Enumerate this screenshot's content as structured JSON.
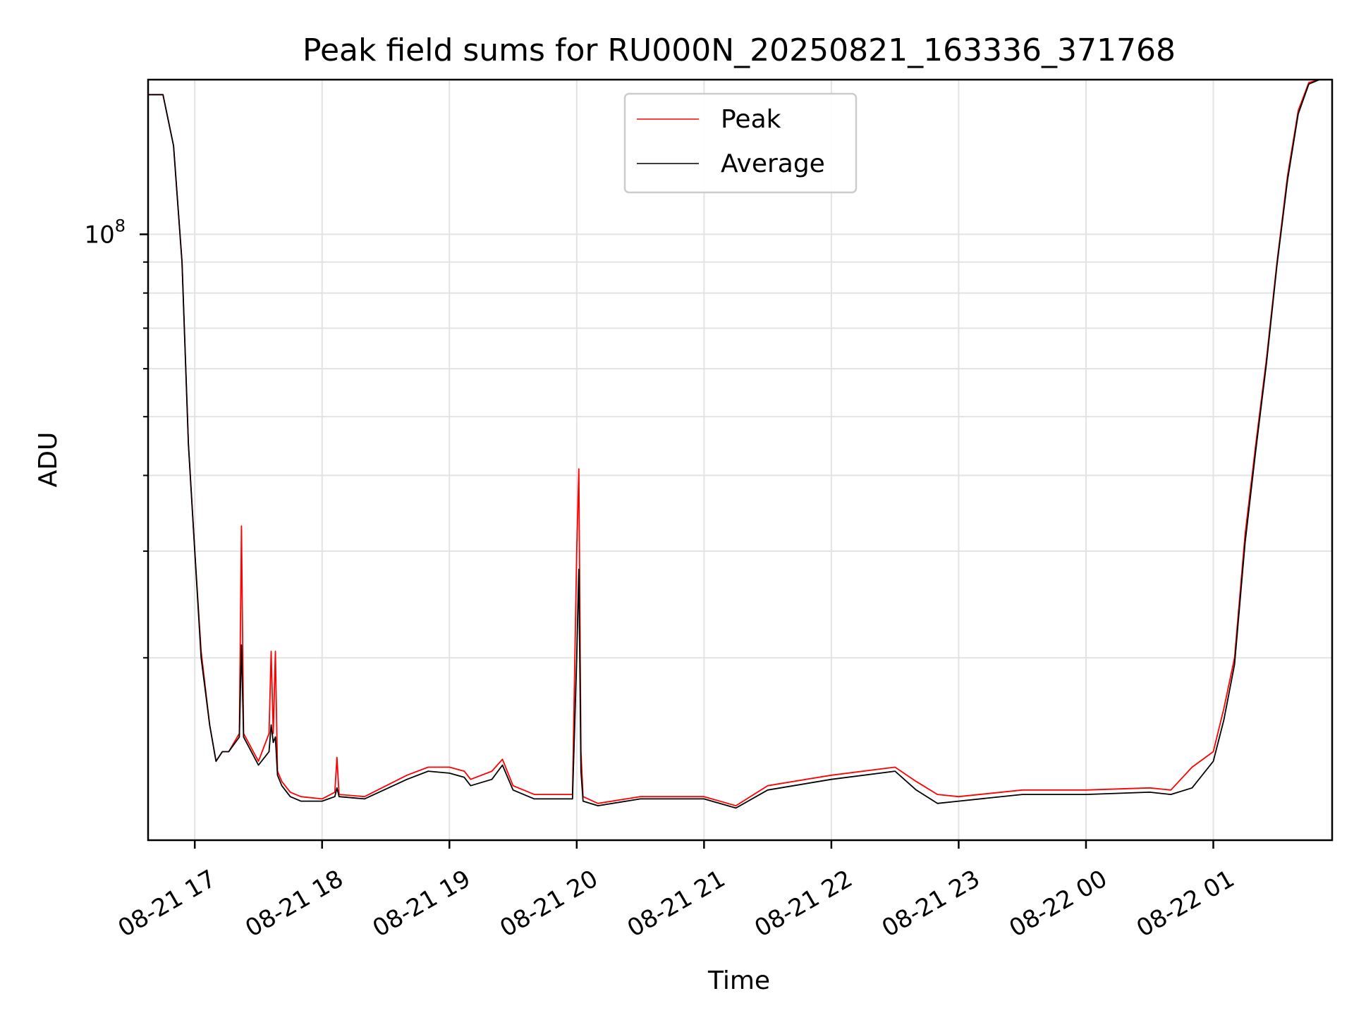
{
  "chart_data": {
    "type": "line",
    "title": "Peak field sums for RU000N_20250821_163336_371768",
    "xlabel": "Time",
    "ylabel": "ADU",
    "yscale": "log",
    "grid": true,
    "legend_position": "upper center",
    "x_tick_labels": [
      "08-21 17",
      "08-21 18",
      "08-21 19",
      "08-21 20",
      "08-21 21",
      "08-21 22",
      "08-21 23",
      "08-22 00",
      "08-22 01"
    ],
    "x_ticks": [
      "2025-08-21 17:00",
      "2025-08-21 18:00",
      "2025-08-21 19:00",
      "2025-08-21 20:00",
      "2025-08-21 21:00",
      "2025-08-21 22:00",
      "2025-08-21 23:00",
      "2025-08-22 00:00",
      "2025-08-22 01:00"
    ],
    "xlim": [
      "2025-08-21 16:38",
      "2025-08-22 01:56"
    ],
    "ylim": [
      10000000,
      180000000
    ],
    "y_major_tick_labels": [
      {
        "value": 100000000,
        "base": "10",
        "exp": "8"
      }
    ],
    "y_minor_ticks": [
      20000000,
      30000000,
      40000000,
      50000000,
      60000000,
      70000000,
      80000000,
      90000000
    ],
    "series": [
      {
        "name": "Peak",
        "color": "#ff0000",
        "x": [
          "2025-08-21 16:38",
          "2025-08-21 16:45",
          "2025-08-21 16:50",
          "2025-08-21 16:54",
          "2025-08-21 16:57",
          "2025-08-21 17:00",
          "2025-08-21 17:03",
          "2025-08-21 17:07",
          "2025-08-21 17:10",
          "2025-08-21 17:13",
          "2025-08-21 17:16",
          "2025-08-21 17:21",
          "2025-08-21 17:22",
          "2025-08-21 17:23",
          "2025-08-21 17:30",
          "2025-08-21 17:35",
          "2025-08-21 17:36",
          "2025-08-21 17:37",
          "2025-08-21 17:38",
          "2025-08-21 17:39",
          "2025-08-21 17:41",
          "2025-08-21 17:45",
          "2025-08-21 17:50",
          "2025-08-21 18:00",
          "2025-08-21 18:06",
          "2025-08-21 18:07",
          "2025-08-21 18:08",
          "2025-08-21 18:20",
          "2025-08-21 18:40",
          "2025-08-21 18:50",
          "2025-08-21 19:00",
          "2025-08-21 19:07",
          "2025-08-21 19:10",
          "2025-08-21 19:20",
          "2025-08-21 19:25",
          "2025-08-21 19:30",
          "2025-08-21 19:40",
          "2025-08-21 19:58",
          "2025-08-21 20:00",
          "2025-08-21 20:01",
          "2025-08-21 20:02",
          "2025-08-21 20:03",
          "2025-08-21 20:10",
          "2025-08-21 20:30",
          "2025-08-21 21:00",
          "2025-08-21 21:15",
          "2025-08-21 21:30",
          "2025-08-21 22:00",
          "2025-08-21 22:30",
          "2025-08-21 22:40",
          "2025-08-21 22:50",
          "2025-08-21 23:00",
          "2025-08-21 23:30",
          "2025-08-22 00:00",
          "2025-08-22 00:30",
          "2025-08-22 00:40",
          "2025-08-22 00:50",
          "2025-08-22 01:00",
          "2025-08-22 01:05",
          "2025-08-22 01:10",
          "2025-08-22 01:15",
          "2025-08-22 01:20",
          "2025-08-22 01:25",
          "2025-08-22 01:30",
          "2025-08-22 01:35",
          "2025-08-22 01:40",
          "2025-08-22 01:45",
          "2025-08-22 01:50",
          "2025-08-22 01:56"
        ],
        "y": [
          170000000,
          170000000,
          140000000,
          90000000,
          45000000,
          30000000,
          20500000,
          15500000,
          13500000,
          14000000,
          14000000,
          15000000,
          33000000,
          15000000,
          13500000,
          15000000,
          20500000,
          15000000,
          20500000,
          13000000,
          12500000,
          12000000,
          11800000,
          11700000,
          12000000,
          13700000,
          11900000,
          11800000,
          12800000,
          13200000,
          13200000,
          13000000,
          12600000,
          13000000,
          13600000,
          12300000,
          11900000,
          11900000,
          30000000,
          41000000,
          14000000,
          11800000,
          11500000,
          11800000,
          11800000,
          11400000,
          12300000,
          12800000,
          13200000,
          12500000,
          11900000,
          11800000,
          12100000,
          12100000,
          12200000,
          12100000,
          13200000,
          14000000,
          16500000,
          20000000,
          32000000,
          45000000,
          62000000,
          90000000,
          125000000,
          160000000,
          178000000,
          180000000,
          180000000
        ]
      },
      {
        "name": "Average",
        "color": "#000000",
        "x": [
          "2025-08-21 16:38",
          "2025-08-21 16:45",
          "2025-08-21 16:50",
          "2025-08-21 16:54",
          "2025-08-21 16:57",
          "2025-08-21 17:00",
          "2025-08-21 17:03",
          "2025-08-21 17:07",
          "2025-08-21 17:10",
          "2025-08-21 17:13",
          "2025-08-21 17:16",
          "2025-08-21 17:21",
          "2025-08-21 17:22",
          "2025-08-21 17:23",
          "2025-08-21 17:30",
          "2025-08-21 17:35",
          "2025-08-21 17:36",
          "2025-08-21 17:37",
          "2025-08-21 17:38",
          "2025-08-21 17:39",
          "2025-08-21 17:41",
          "2025-08-21 17:45",
          "2025-08-21 17:50",
          "2025-08-21 18:00",
          "2025-08-21 18:06",
          "2025-08-21 18:07",
          "2025-08-21 18:08",
          "2025-08-21 18:20",
          "2025-08-21 18:40",
          "2025-08-21 18:50",
          "2025-08-21 19:00",
          "2025-08-21 19:07",
          "2025-08-21 19:10",
          "2025-08-21 19:20",
          "2025-08-21 19:25",
          "2025-08-21 19:30",
          "2025-08-21 19:40",
          "2025-08-21 19:58",
          "2025-08-21 20:00",
          "2025-08-21 20:01",
          "2025-08-21 20:02",
          "2025-08-21 20:03",
          "2025-08-21 20:10",
          "2025-08-21 20:30",
          "2025-08-21 21:00",
          "2025-08-21 21:15",
          "2025-08-21 21:30",
          "2025-08-21 22:00",
          "2025-08-21 22:30",
          "2025-08-21 22:40",
          "2025-08-21 22:50",
          "2025-08-21 23:00",
          "2025-08-21 23:30",
          "2025-08-22 00:00",
          "2025-08-22 00:30",
          "2025-08-22 00:40",
          "2025-08-22 00:50",
          "2025-08-22 01:00",
          "2025-08-22 01:05",
          "2025-08-22 01:10",
          "2025-08-22 01:15",
          "2025-08-22 01:20",
          "2025-08-22 01:25",
          "2025-08-22 01:30",
          "2025-08-22 01:35",
          "2025-08-22 01:40",
          "2025-08-22 01:45",
          "2025-08-22 01:50",
          "2025-08-22 01:56"
        ],
        "y": [
          170000000,
          170000000,
          140000000,
          90000000,
          45000000,
          30000000,
          20000000,
          15500000,
          13500000,
          14000000,
          14000000,
          14800000,
          21000000,
          14800000,
          13300000,
          14000000,
          15500000,
          14500000,
          14800000,
          12800000,
          12300000,
          11800000,
          11600000,
          11600000,
          11800000,
          12200000,
          11800000,
          11700000,
          12600000,
          13000000,
          12900000,
          12700000,
          12300000,
          12600000,
          13300000,
          12100000,
          11700000,
          11700000,
          20000000,
          28000000,
          13000000,
          11600000,
          11400000,
          11700000,
          11700000,
          11300000,
          12100000,
          12600000,
          13000000,
          12100000,
          11500000,
          11600000,
          11900000,
          11900000,
          12000000,
          11900000,
          12200000,
          13500000,
          15800000,
          19500000,
          31000000,
          44000000,
          61000000,
          89000000,
          123000000,
          158000000,
          177000000,
          180000000,
          180000000
        ]
      }
    ]
  }
}
